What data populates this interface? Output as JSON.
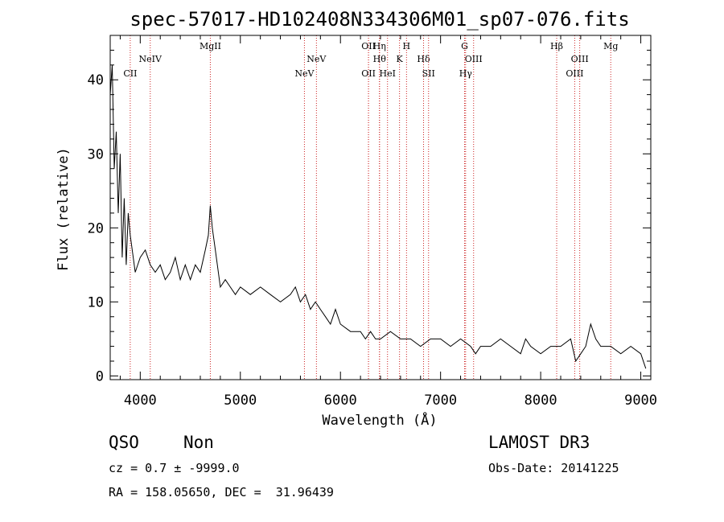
{
  "chart_data": {
    "type": "line",
    "title": "spec-57017-HD102408N334306M01_sp07-076.fits",
    "xlabel": "Wavelength (Å)",
    "ylabel": "Flux (relative)",
    "xlim": [
      3700,
      9100
    ],
    "ylim": [
      -0.5,
      46
    ],
    "xticks": [
      4000,
      5000,
      6000,
      7000,
      8000,
      9000
    ],
    "yticks": [
      0,
      10,
      20,
      30,
      40
    ],
    "series": [
      {
        "name": "flux",
        "color": "#000000",
        "x": [
          3700,
          3720,
          3740,
          3760,
          3780,
          3800,
          3820,
          3840,
          3860,
          3880,
          3900,
          3950,
          4000,
          4050,
          4100,
          4150,
          4200,
          4250,
          4300,
          4350,
          4400,
          4450,
          4500,
          4550,
          4600,
          4650,
          4680,
          4700,
          4720,
          4750,
          4800,
          4850,
          4900,
          4950,
          5000,
          5100,
          5200,
          5300,
          5400,
          5500,
          5550,
          5600,
          5650,
          5700,
          5750,
          5800,
          5850,
          5900,
          5950,
          6000,
          6100,
          6200,
          6250,
          6300,
          6350,
          6400,
          6500,
          6600,
          6700,
          6800,
          6900,
          7000,
          7100,
          7200,
          7300,
          7350,
          7400,
          7500,
          7600,
          7700,
          7800,
          7850,
          7900,
          8000,
          8100,
          8200,
          8300,
          8350,
          8400,
          8450,
          8500,
          8550,
          8600,
          8700,
          8800,
          8900,
          9000,
          9050
        ],
        "y": [
          38,
          42,
          28,
          33,
          22,
          30,
          16,
          24,
          15,
          22,
          19,
          14,
          16,
          17,
          15,
          14,
          15,
          13,
          14,
          16,
          13,
          15,
          13,
          15,
          14,
          17,
          19,
          23,
          20,
          17,
          12,
          13,
          12,
          11,
          12,
          11,
          12,
          11,
          10,
          11,
          12,
          10,
          11,
          9,
          10,
          9,
          8,
          7,
          9,
          7,
          6,
          6,
          5,
          6,
          5,
          5,
          6,
          5,
          5,
          4,
          5,
          5,
          4,
          5,
          4,
          3,
          4,
          4,
          5,
          4,
          3,
          5,
          4,
          3,
          4,
          4,
          5,
          2,
          3,
          4,
          7,
          5,
          4,
          4,
          3,
          4,
          3,
          1
        ]
      }
    ],
    "emission_lines": [
      {
        "label": "CII",
        "wavelength": 3900,
        "row": 3
      },
      {
        "label": "NeIV",
        "wavelength": 4100,
        "row": 2
      },
      {
        "label": "MgII",
        "wavelength": 4700,
        "row": 1
      },
      {
        "label": "NeV",
        "wavelength": 5640,
        "row": 3
      },
      {
        "label": "NeV",
        "wavelength": 5760,
        "row": 2
      },
      {
        "label": "OII",
        "wavelength": 6280,
        "row": 1
      },
      {
        "label": "OII",
        "wavelength": 6280,
        "row": 3
      },
      {
        "label": "Hη",
        "wavelength": 6390,
        "row": 1
      },
      {
        "label": "Hθ",
        "wavelength": 6390,
        "row": 2
      },
      {
        "label": "HeI",
        "wavelength": 6470,
        "row": 3
      },
      {
        "label": "K",
        "wavelength": 6590,
        "row": 2
      },
      {
        "label": "H",
        "wavelength": 6660,
        "row": 1
      },
      {
        "label": "Hδ",
        "wavelength": 6830,
        "row": 2
      },
      {
        "label": "SII",
        "wavelength": 6880,
        "row": 3
      },
      {
        "label": "G",
        "wavelength": 7240,
        "row": 1
      },
      {
        "label": "OIII",
        "wavelength": 7330,
        "row": 2
      },
      {
        "label": "Hγ",
        "wavelength": 7250,
        "row": 3
      },
      {
        "label": "Hβ",
        "wavelength": 8160,
        "row": 1
      },
      {
        "label": "OIII",
        "wavelength": 8390,
        "row": 2
      },
      {
        "label": "OIII",
        "wavelength": 8340,
        "row": 3
      },
      {
        "label": "Mg",
        "wavelength": 8700,
        "row": 1
      }
    ]
  },
  "info": {
    "class": "QSO",
    "subclass": "Non",
    "survey": "LAMOST DR3",
    "cz": "cz = 0.7 ± -9999.0",
    "obs_date": "Obs-Date: 20141225",
    "coords": "RA = 158.05650, DEC =  31.96439"
  }
}
